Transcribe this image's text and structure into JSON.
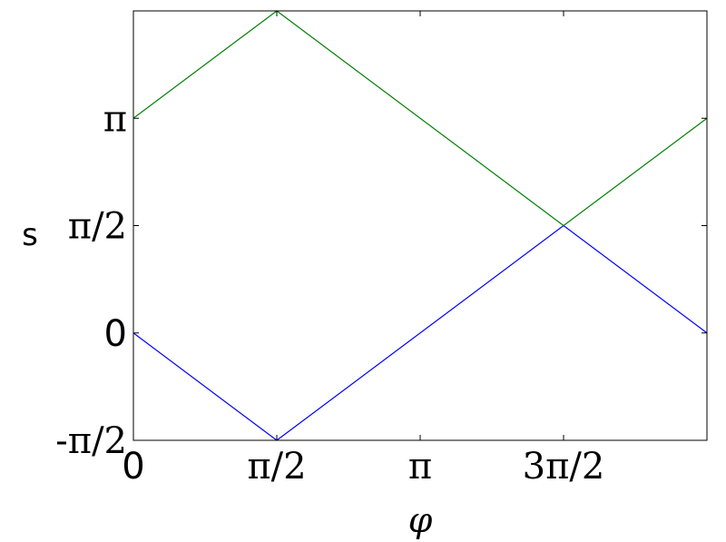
{
  "chart_data": {
    "type": "line",
    "title": "",
    "xlabel": "φ",
    "ylabel": "s",
    "xlim": [
      0,
      6.2832
    ],
    "ylim": [
      -1.5708,
      4.7124
    ],
    "grid": false,
    "x_ticks": [
      {
        "value": 0,
        "label": "0"
      },
      {
        "value": 1.5708,
        "label": "π/2"
      },
      {
        "value": 3.1416,
        "label": "π"
      },
      {
        "value": 4.7124,
        "label": "3π/2"
      }
    ],
    "y_ticks": [
      {
        "value": -1.5708,
        "label": "-π/2"
      },
      {
        "value": 0,
        "label": "0"
      },
      {
        "value": 1.5708,
        "label": "π/2"
      },
      {
        "value": 3.1416,
        "label": "π"
      }
    ],
    "series": [
      {
        "color": "#0000ff",
        "x": [
          0,
          1.5708,
          4.7124,
          6.2832
        ],
        "y": [
          0,
          -1.5708,
          1.5708,
          0
        ]
      },
      {
        "color": "#008000",
        "x": [
          0,
          1.5708,
          4.7124,
          6.2832
        ],
        "y": [
          3.1416,
          4.7124,
          1.5708,
          3.1416
        ]
      }
    ]
  }
}
